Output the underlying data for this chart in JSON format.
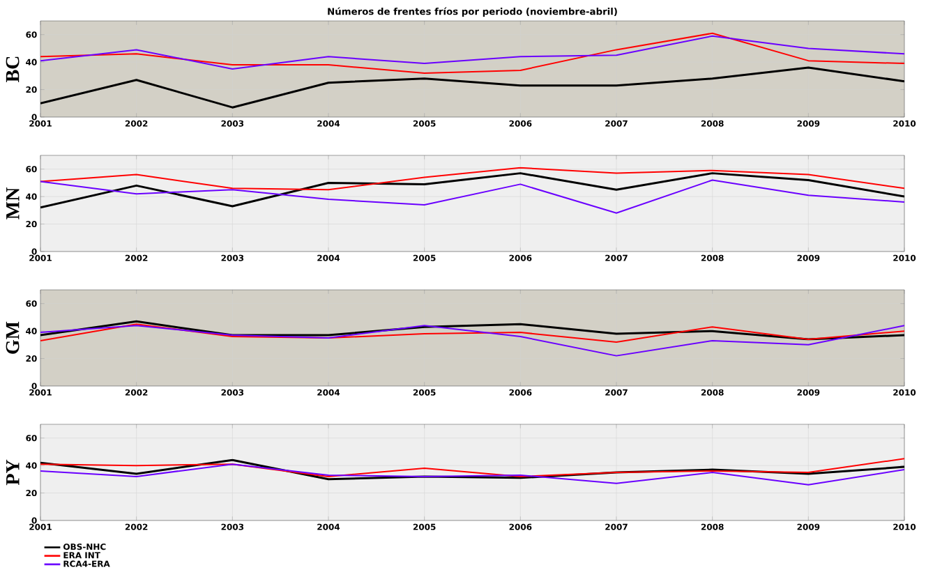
{
  "chart_data": [
    {
      "type": "line",
      "title": "Números de frentes fríos por periodo (noviembre-abril)",
      "ylabel": "BC",
      "x": [
        2001,
        2002,
        2003,
        2004,
        2005,
        2006,
        2007,
        2008,
        2009,
        2010
      ],
      "xlim": [
        2001,
        2010
      ],
      "xticks": [
        2001,
        2002,
        2003,
        2004,
        2005,
        2006,
        2007,
        2008,
        2009,
        2010
      ],
      "ylim": [
        0,
        70
      ],
      "yticks": [
        0,
        20,
        40,
        60
      ],
      "grid": true,
      "series": [
        {
          "color": "#000000",
          "values": [
            10,
            27,
            7,
            25,
            28,
            23,
            23,
            28,
            36,
            26
          ]
        },
        {
          "color": "#ff0000",
          "values": [
            44,
            46,
            38,
            38,
            32,
            34,
            49,
            61,
            41,
            39
          ]
        },
        {
          "color": "#6a00ff",
          "values": [
            41,
            49,
            35,
            44,
            39,
            44,
            45,
            59,
            50,
            46
          ]
        }
      ]
    },
    {
      "type": "line",
      "ylabel": "MN",
      "x": [
        2001,
        2002,
        2003,
        2004,
        2005,
        2006,
        2007,
        2008,
        2009,
        2010
      ],
      "xlim": [
        2001,
        2010
      ],
      "xticks": [
        2001,
        2002,
        2003,
        2004,
        2005,
        2006,
        2007,
        2008,
        2009,
        2010
      ],
      "ylim": [
        0,
        70
      ],
      "yticks": [
        0,
        20,
        40,
        60
      ],
      "grid": true,
      "series": [
        {
          "color": "#000000",
          "values": [
            32,
            48,
            33,
            50,
            49,
            57,
            45,
            57,
            52,
            40
          ]
        },
        {
          "color": "#ff0000",
          "values": [
            51,
            56,
            46,
            45,
            54,
            61,
            57,
            59,
            56,
            46
          ]
        },
        {
          "color": "#6a00ff",
          "values": [
            51,
            42,
            45,
            38,
            34,
            49,
            28,
            52,
            41,
            36
          ]
        }
      ]
    },
    {
      "type": "line",
      "ylabel": "GM",
      "x": [
        2001,
        2002,
        2003,
        2004,
        2005,
        2006,
        2007,
        2008,
        2009,
        2010
      ],
      "xlim": [
        2001,
        2010
      ],
      "xticks": [
        2001,
        2002,
        2003,
        2004,
        2005,
        2006,
        2007,
        2008,
        2009,
        2010
      ],
      "ylim": [
        0,
        70
      ],
      "yticks": [
        0,
        20,
        40,
        60
      ],
      "grid": true,
      "series": [
        {
          "color": "#000000",
          "values": [
            37,
            47,
            37,
            37,
            43,
            45,
            38,
            40,
            34,
            37
          ]
        },
        {
          "color": "#ff0000",
          "values": [
            33,
            45,
            36,
            35,
            38,
            39,
            32,
            43,
            34,
            40
          ]
        },
        {
          "color": "#6a00ff",
          "values": [
            39,
            44,
            37,
            35,
            44,
            36,
            22,
            33,
            30,
            44
          ]
        }
      ]
    },
    {
      "type": "line",
      "ylabel": "PY",
      "x": [
        2001,
        2002,
        2003,
        2004,
        2005,
        2006,
        2007,
        2008,
        2009,
        2010
      ],
      "xlim": [
        2001,
        2010
      ],
      "xticks": [
        2001,
        2002,
        2003,
        2004,
        2005,
        2006,
        2007,
        2008,
        2009,
        2010
      ],
      "ylim": [
        0,
        70
      ],
      "yticks": [
        0,
        20,
        40,
        60
      ],
      "grid": true,
      "legend": "bottom left",
      "series": [
        {
          "name": "OBS-NHC",
          "color": "#000000",
          "values": [
            42,
            34,
            44,
            30,
            32,
            31,
            35,
            37,
            34,
            39
          ]
        },
        {
          "name": "ERA INT",
          "color": "#ff0000",
          "values": [
            41,
            40,
            41,
            32,
            38,
            32,
            35,
            36,
            35,
            45
          ]
        },
        {
          "name": "RCA4-ERA",
          "color": "#6a00ff",
          "values": [
            36,
            32,
            41,
            33,
            32,
            33,
            27,
            35,
            26,
            37
          ]
        }
      ]
    }
  ]
}
